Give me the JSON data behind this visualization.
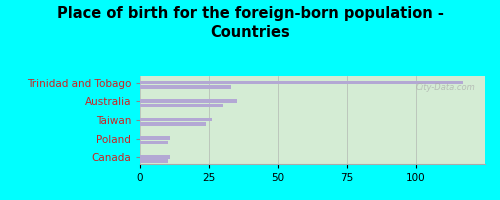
{
  "title": "Place of birth for the foreign-born population -\nCountries",
  "categories": [
    "Trinidad and Tobago",
    "Australia",
    "Taiwan",
    "Poland",
    "Canada"
  ],
  "values1": [
    117,
    35,
    26,
    11,
    11
  ],
  "values2": [
    33,
    30,
    24,
    10,
    10
  ],
  "bar_color": "#b3a8d4",
  "bg_outer": "#00FFFF",
  "bg_plot": "#d4ecd4",
  "xlim": [
    0,
    125
  ],
  "xticks": [
    0,
    25,
    50,
    75,
    100
  ],
  "title_fontsize": 10.5,
  "label_fontsize": 7.5,
  "watermark": "City-Data.com"
}
